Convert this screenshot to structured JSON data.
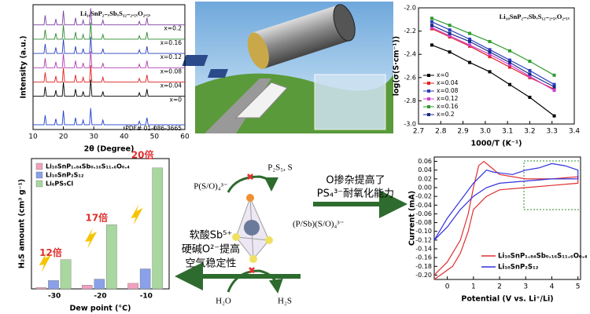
{
  "chart_data": [
    {
      "type": "line",
      "title": "Li₁₀SnP₂₋ₓSbₓS₁₂₋₂.₅ₓO₂.₅ₓ",
      "x_label": "2θ (Degree)",
      "y_label": "Intensity (a.u.)",
      "legend": "inline",
      "x": [
        10,
        13.6,
        14,
        14.4,
        17.1,
        17.5,
        17.9,
        19.6,
        20,
        20.4,
        23.6,
        24,
        24.4,
        26.1,
        26.5,
        26.9,
        28.6,
        29,
        29.4,
        32.6,
        33,
        33.4,
        44.6,
        45,
        45.4,
        47.1,
        47.5,
        47.9,
        60
      ],
      "xlim": [
        10,
        60
      ],
      "xticks": [
        10,
        20,
        30,
        40,
        50,
        60
      ],
      "ylim": [
        0,
        105
      ],
      "series": [
        {
          "name": "x=0.2",
          "color": "#7b3fa0",
          "values": [
            88,
            88,
            96,
            88,
            88,
            93,
            88,
            88,
            100,
            88,
            88,
            94,
            88,
            88,
            92,
            88,
            88,
            102,
            88,
            88,
            92,
            88,
            88,
            91,
            88,
            88,
            94,
            88,
            88
          ]
        },
        {
          "name": "x=0.16",
          "color": "#2e8b2e",
          "values": [
            76,
            76,
            84,
            76,
            76,
            81,
            76,
            76,
            88,
            76,
            76,
            82,
            76,
            76,
            80,
            76,
            76,
            90,
            76,
            76,
            80,
            76,
            76,
            79,
            76,
            76,
            82,
            76,
            76
          ]
        },
        {
          "name": "x=0.12",
          "color": "#2a3fbf",
          "values": [
            64,
            64,
            72,
            64,
            64,
            69,
            64,
            64,
            76,
            64,
            64,
            70,
            64,
            64,
            68,
            64,
            64,
            78,
            64,
            64,
            68,
            64,
            64,
            67,
            64,
            64,
            70,
            64,
            64
          ]
        },
        {
          "name": "x=0.08",
          "color": "#b03cb0",
          "values": [
            52,
            52,
            60,
            52,
            52,
            57,
            52,
            52,
            64,
            52,
            52,
            58,
            52,
            52,
            56,
            52,
            52,
            66,
            52,
            52,
            56,
            52,
            52,
            55,
            52,
            52,
            58,
            52,
            52
          ]
        },
        {
          "name": "x=0.04",
          "color": "#e02020",
          "values": [
            40,
            40,
            48,
            40,
            40,
            45,
            40,
            40,
            52,
            40,
            40,
            46,
            40,
            40,
            44,
            40,
            40,
            54,
            40,
            40,
            44,
            40,
            40,
            43,
            40,
            40,
            46,
            40,
            40
          ]
        },
        {
          "name": "x=0",
          "color": "#000000",
          "values": [
            28,
            28,
            36,
            28,
            28,
            33,
            28,
            28,
            40,
            28,
            28,
            34,
            28,
            28,
            32,
            28,
            28,
            42,
            28,
            28,
            32,
            28,
            28,
            31,
            28,
            28,
            34,
            28,
            28
          ]
        },
        {
          "name": "PDF# 01-086-3665",
          "color": "#1f3fd0",
          "values": [
            4,
            4,
            12,
            4,
            4,
            9,
            4,
            4,
            16,
            4,
            4,
            10,
            4,
            4,
            8,
            4,
            4,
            18,
            4,
            4,
            8,
            4,
            4,
            7,
            4,
            4,
            10,
            4,
            4
          ]
        }
      ]
    },
    {
      "type": "line",
      "markers": true,
      "title": "Li₁₀SnP₂₋ₓSbₓS₁₂₋₂.₅ₓO₂.₅ₓ",
      "x_label": "1000/T (K⁻¹)",
      "y_label": "log(σ(S·cm⁻¹))",
      "legend": "lower left",
      "x": [
        2.76,
        2.84,
        2.93,
        3.02,
        3.11,
        3.2,
        3.31
      ],
      "xlim": [
        2.7,
        3.4
      ],
      "xticks": [
        2.7,
        2.8,
        2.9,
        {
          "value": 3,
          "label": "3.0"
        },
        3.1,
        3.2,
        3.3,
        3.4
      ],
      "ylim": [
        -3,
        -2
      ],
      "yticks": [
        {
          "value": -3,
          "label": "-3.0"
        },
        -2.8,
        -2.6,
        -2.4,
        -2.2,
        {
          "value": -2,
          "label": "-2.0"
        }
      ],
      "series": [
        {
          "name": "x=0",
          "color": "#000000",
          "values": [
            -2.32,
            -2.38,
            -2.47,
            -2.55,
            -2.66,
            -2.77,
            -2.93
          ]
        },
        {
          "name": "x=0.04",
          "color": "#e02020",
          "values": [
            -2.18,
            -2.25,
            -2.33,
            -2.42,
            -2.51,
            -2.6,
            -2.7
          ]
        },
        {
          "name": "x=0.08",
          "color": "#2a3fbf",
          "values": [
            -2.12,
            -2.19,
            -2.27,
            -2.36,
            -2.45,
            -2.54,
            -2.66
          ]
        },
        {
          "name": "x=0.12",
          "color": "#d040d0",
          "values": [
            -2.17,
            -2.24,
            -2.32,
            -2.4,
            -2.49,
            -2.59,
            -2.71
          ]
        },
        {
          "name": "x=0.16",
          "color": "#2e9b2e",
          "values": [
            -2.09,
            -2.15,
            -2.22,
            -2.29,
            -2.37,
            -2.46,
            -2.58
          ]
        },
        {
          "name": "x=0.2",
          "color": "#1a2a8a",
          "values": [
            -2.15,
            -2.22,
            -2.29,
            -2.38,
            -2.47,
            -2.57,
            -2.68
          ]
        }
      ]
    },
    {
      "type": "bar",
      "x_label": "Dew point (°C)",
      "y_label": "H₂S amount (cm³ g⁻¹)",
      "legend": "upper left",
      "categories": [
        "-30",
        "-20",
        "-10"
      ],
      "ylim": [
        0,
        28
      ],
      "annotations": [
        "12倍",
        "17倍",
        "20倍"
      ],
      "series": [
        {
          "name": "Li₁₀SnP₁.₈₄Sb₀.₁₆S₁₁.₆O₀.₄",
          "color": "#f2a0c0",
          "values": [
            0.3,
            0.8,
            1.2
          ]
        },
        {
          "name": "Li₁₀SnP₂S₁₂",
          "color": "#8aa0e8",
          "values": [
            1.8,
            2.1,
            4.3
          ]
        },
        {
          "name": "Li₆PS₅Cl",
          "color": "#a8d8a0",
          "values": [
            6.3,
            13.8,
            26
          ]
        }
      ]
    },
    {
      "type": "line",
      "x_label": "Potential (V vs. Li⁺/Li)",
      "y_label": "Current (mA)",
      "legend": "lower right",
      "xlim": [
        -0.5,
        5.1
      ],
      "xticks": [
        0,
        1,
        2,
        3,
        4,
        5
      ],
      "ylim": [
        -0.21,
        0.07
      ],
      "yticks": [
        {
          "value": -0.2,
          "label": "-0.20"
        },
        -0.18,
        -0.16,
        -0.14,
        -0.12,
        {
          "value": -0.1,
          "label": "-0.10"
        },
        -0.08,
        -0.06,
        -0.04,
        -0.02,
        {
          "value": 0,
          "label": "0.00"
        },
        0.02,
        0.04,
        0.06
      ],
      "series": [
        {
          "name": "Li₁₀SnP₁.₈₄Sb₀.₁₆S₁₁.₆O₀.₄",
          "color": "#e03030",
          "x": [
            -0.5,
            0,
            0.5,
            0.8,
            1,
            1.2,
            1.4,
            1.6,
            2,
            3,
            4,
            5,
            5,
            4,
            3,
            2,
            1.5,
            1,
            0.8,
            0.5,
            0.2,
            -0.5
          ],
          "values": [
            -0.2,
            -0.17,
            -0.12,
            -0.06,
            0,
            0.05,
            0.06,
            0.05,
            0.03,
            0.02,
            0.02,
            0.025,
            0.01,
            0.005,
            0,
            -0.005,
            -0.02,
            -0.05,
            -0.1,
            -0.15,
            -0.18,
            -0.21
          ]
        },
        {
          "name": "Li₁₀SnP₂S₁₂",
          "color": "#3030e0",
          "x": [
            -0.5,
            0,
            0.5,
            1,
            1.5,
            1.8,
            2.5,
            3,
            3.5,
            4,
            4.5,
            5,
            5,
            4,
            3,
            2,
            1.5,
            1,
            0.5,
            0,
            -0.5
          ],
          "values": [
            -0.12,
            -0.07,
            -0.03,
            0.01,
            0.04,
            0.035,
            0.03,
            0.04,
            0.045,
            0.055,
            0.05,
            0.04,
            0.02,
            0.02,
            0.015,
            0.01,
            0,
            -0.02,
            -0.05,
            -0.09,
            -0.12
          ]
        }
      ]
    }
  ],
  "diagram": {
    "texts": [
      "O掺杂提高了",
      "PS₄³⁻耐氧化能力",
      "软酸Sb⁵⁺",
      "硬碱O²⁻提高",
      "空气稳定性",
      "P(S/O)₄³⁻",
      "P₂S₅, S",
      "(P/Sb)(S/O)₄³⁻",
      "H₂O",
      "H₂S"
    ]
  }
}
